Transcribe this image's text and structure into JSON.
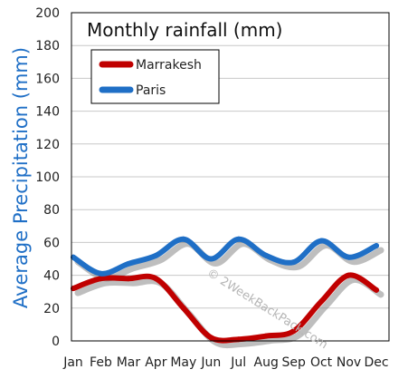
{
  "chart_data": {
    "type": "line",
    "title": "Monthly rainfall (mm)",
    "ylabel": "Average Precipitation (mm)",
    "xlabel": "",
    "categories": [
      "Jan",
      "Feb",
      "Mar",
      "Apr",
      "May",
      "Jun",
      "Jul",
      "Aug",
      "Sep",
      "Oct",
      "Nov",
      "Dec"
    ],
    "ylim": [
      0,
      200
    ],
    "yticks": [
      0,
      20,
      40,
      60,
      80,
      100,
      120,
      140,
      160,
      180,
      200
    ],
    "grid": true,
    "legend_position": "top-left",
    "series": [
      {
        "name": "Marrakesh",
        "color": "#c00000",
        "values": [
          32,
          38,
          38,
          38,
          20,
          2,
          1,
          3,
          6,
          24,
          40,
          31
        ]
      },
      {
        "name": "Paris",
        "color": "#1f6fc6",
        "values": [
          51,
          41,
          47,
          52,
          62,
          50,
          62,
          52,
          48,
          61,
          51,
          58
        ]
      }
    ],
    "watermark": "© 2WeekBackPack.com"
  }
}
